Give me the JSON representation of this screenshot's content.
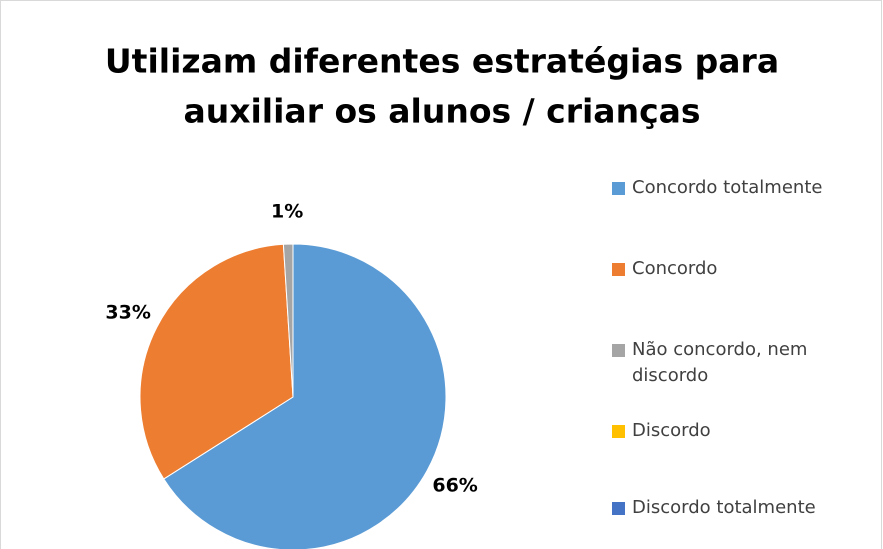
{
  "chart_data": {
    "type": "pie",
    "title": [
      "Utilizam diferentes estratégias para",
      "auxiliar os alunos / crianças"
    ],
    "categories": [
      "Concordo totalmente",
      "Concordo",
      "Não concordo, nem discordo",
      "Discordo",
      "Discordo totalmente"
    ],
    "values": [
      66,
      33,
      1,
      0,
      0
    ],
    "value_labels": [
      "66%",
      "33%",
      "1%",
      null,
      null
    ],
    "colors": [
      "#5b9bd5",
      "#ed7d31",
      "#a5a5a5",
      "#ffc000",
      "#4472c4"
    ],
    "legend": "right"
  }
}
